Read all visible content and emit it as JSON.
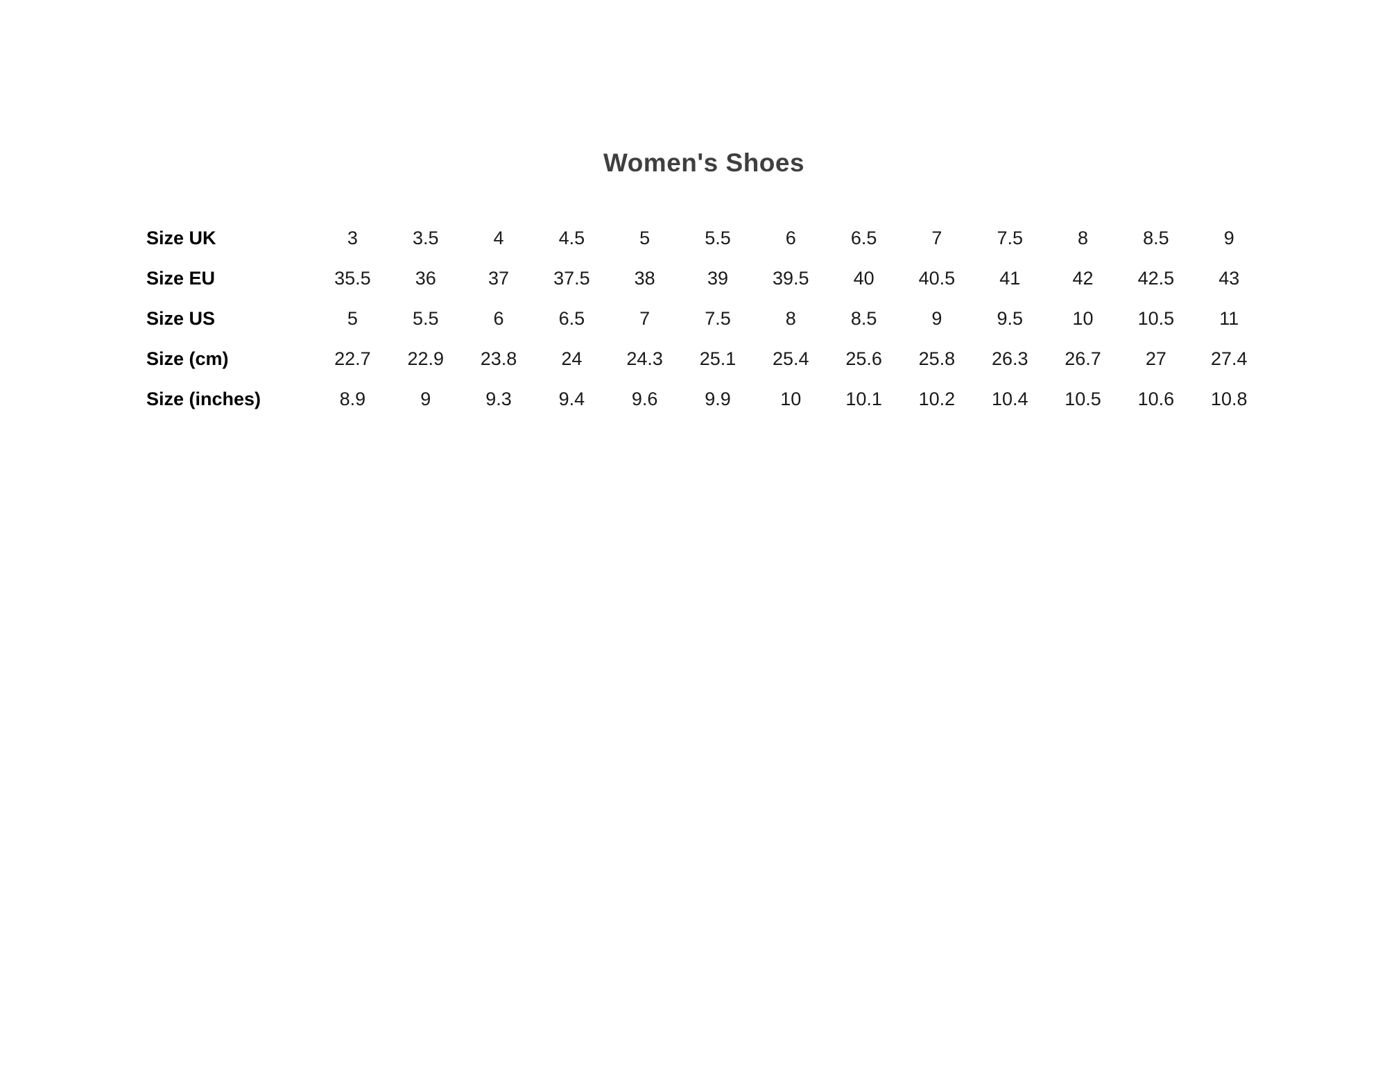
{
  "page": {
    "title": "Women's Shoes",
    "background_color": "#ffffff",
    "title_color": "#3f3f3f",
    "label_color": "#000000",
    "value_color": "#1a1a1a"
  },
  "table": {
    "rows": [
      {
        "label": "Size UK",
        "values": [
          "3",
          "3.5",
          "4",
          "4.5",
          "5",
          "5.5",
          "6",
          "6.5",
          "7",
          "7.5",
          "8",
          "8.5",
          "9"
        ]
      },
      {
        "label": "Size EU",
        "values": [
          "35.5",
          "36",
          "37",
          "37.5",
          "38",
          "39",
          "39.5",
          "40",
          "40.5",
          "41",
          "42",
          "42.5",
          "43"
        ]
      },
      {
        "label": "Size US",
        "values": [
          "5",
          "5.5",
          "6",
          "6.5",
          "7",
          "7.5",
          "8",
          "8.5",
          "9",
          "9.5",
          "10",
          "10.5",
          "11"
        ]
      },
      {
        "label": "Size (cm)",
        "values": [
          "22.7",
          "22.9",
          "23.8",
          "24",
          "24.3",
          "25.1",
          "25.4",
          "25.6",
          "25.8",
          "26.3",
          "26.7",
          "27",
          "27.4"
        ]
      },
      {
        "label": "Size (inches)",
        "values": [
          "8.9",
          "9",
          "9.3",
          "9.4",
          "9.6",
          "9.9",
          "10",
          "10.1",
          "10.2",
          "10.4",
          "10.5",
          "10.6",
          "10.8"
        ]
      }
    ]
  },
  "chart_data": {
    "type": "table",
    "title": "Women's Shoes",
    "row_headers": [
      "Size UK",
      "Size EU",
      "Size US",
      "Size (cm)",
      "Size (inches)"
    ],
    "series": [
      {
        "name": "Size UK",
        "values": [
          3,
          3.5,
          4,
          4.5,
          5,
          5.5,
          6,
          6.5,
          7,
          7.5,
          8,
          8.5,
          9
        ]
      },
      {
        "name": "Size EU",
        "values": [
          35.5,
          36,
          37,
          37.5,
          38,
          39,
          39.5,
          40,
          40.5,
          41,
          42,
          42.5,
          43
        ]
      },
      {
        "name": "Size US",
        "values": [
          5,
          5.5,
          6,
          6.5,
          7,
          7.5,
          8,
          8.5,
          9,
          9.5,
          10,
          10.5,
          11
        ]
      },
      {
        "name": "Size (cm)",
        "values": [
          22.7,
          22.9,
          23.8,
          24,
          24.3,
          25.1,
          25.4,
          25.6,
          25.8,
          26.3,
          26.7,
          27,
          27.4
        ]
      },
      {
        "name": "Size (inches)",
        "values": [
          8.9,
          9,
          9.3,
          9.4,
          9.6,
          9.9,
          10,
          10.1,
          10.2,
          10.4,
          10.5,
          10.6,
          10.8
        ]
      }
    ],
    "layout": {
      "columns": 13,
      "grid": false,
      "borders": false,
      "title_position": "top-center"
    }
  }
}
